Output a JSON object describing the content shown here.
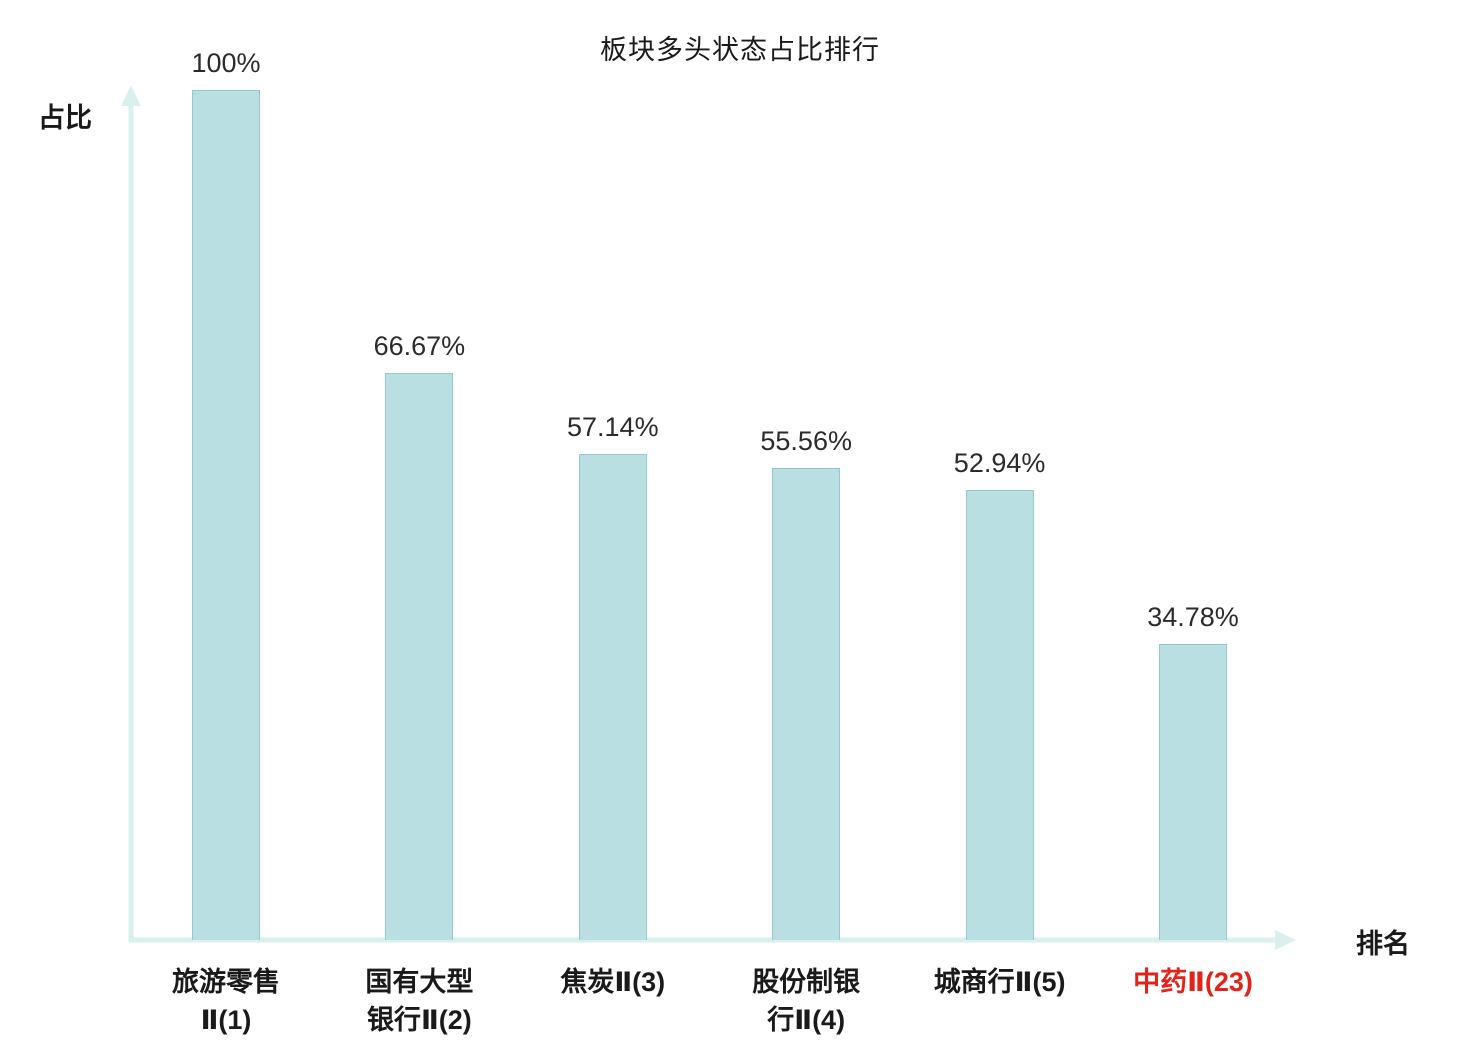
{
  "chart_data": {
    "type": "bar",
    "title": "板块多头状态占比排行",
    "xlabel": "排名",
    "ylabel": "占比",
    "categories": [
      "旅游零售Ⅱ(1)",
      "国有大型银行Ⅱ(2)",
      "焦炭Ⅱ(3)",
      "股份制银行Ⅱ(4)",
      "城商行Ⅱ(5)",
      "中药Ⅱ(23)"
    ],
    "category_lines": [
      [
        "旅游零售",
        "Ⅱ(1)"
      ],
      [
        "国有大型",
        "银行Ⅱ(2)"
      ],
      [
        "焦炭Ⅱ(3)"
      ],
      [
        "股份制银",
        "行Ⅱ(4)"
      ],
      [
        "城商行Ⅱ(5)"
      ],
      [
        "中药Ⅱ(23)"
      ]
    ],
    "values": [
      100,
      66.67,
      57.14,
      55.56,
      52.94,
      34.78
    ],
    "value_labels": [
      "100%",
      "66.67%",
      "57.14%",
      "55.56%",
      "52.94%",
      "34.78%"
    ],
    "highlight_index": 5,
    "ylim": [
      0,
      100
    ],
    "grid": false,
    "legend": "none",
    "bar_color": "#b9dfe3",
    "bar_border_color": "#93c9d1",
    "axis_color": "#daf0ee",
    "label_color": "#1a1a1a",
    "value_color": "#2b2b2b",
    "highlight_color": "#e3231a"
  }
}
